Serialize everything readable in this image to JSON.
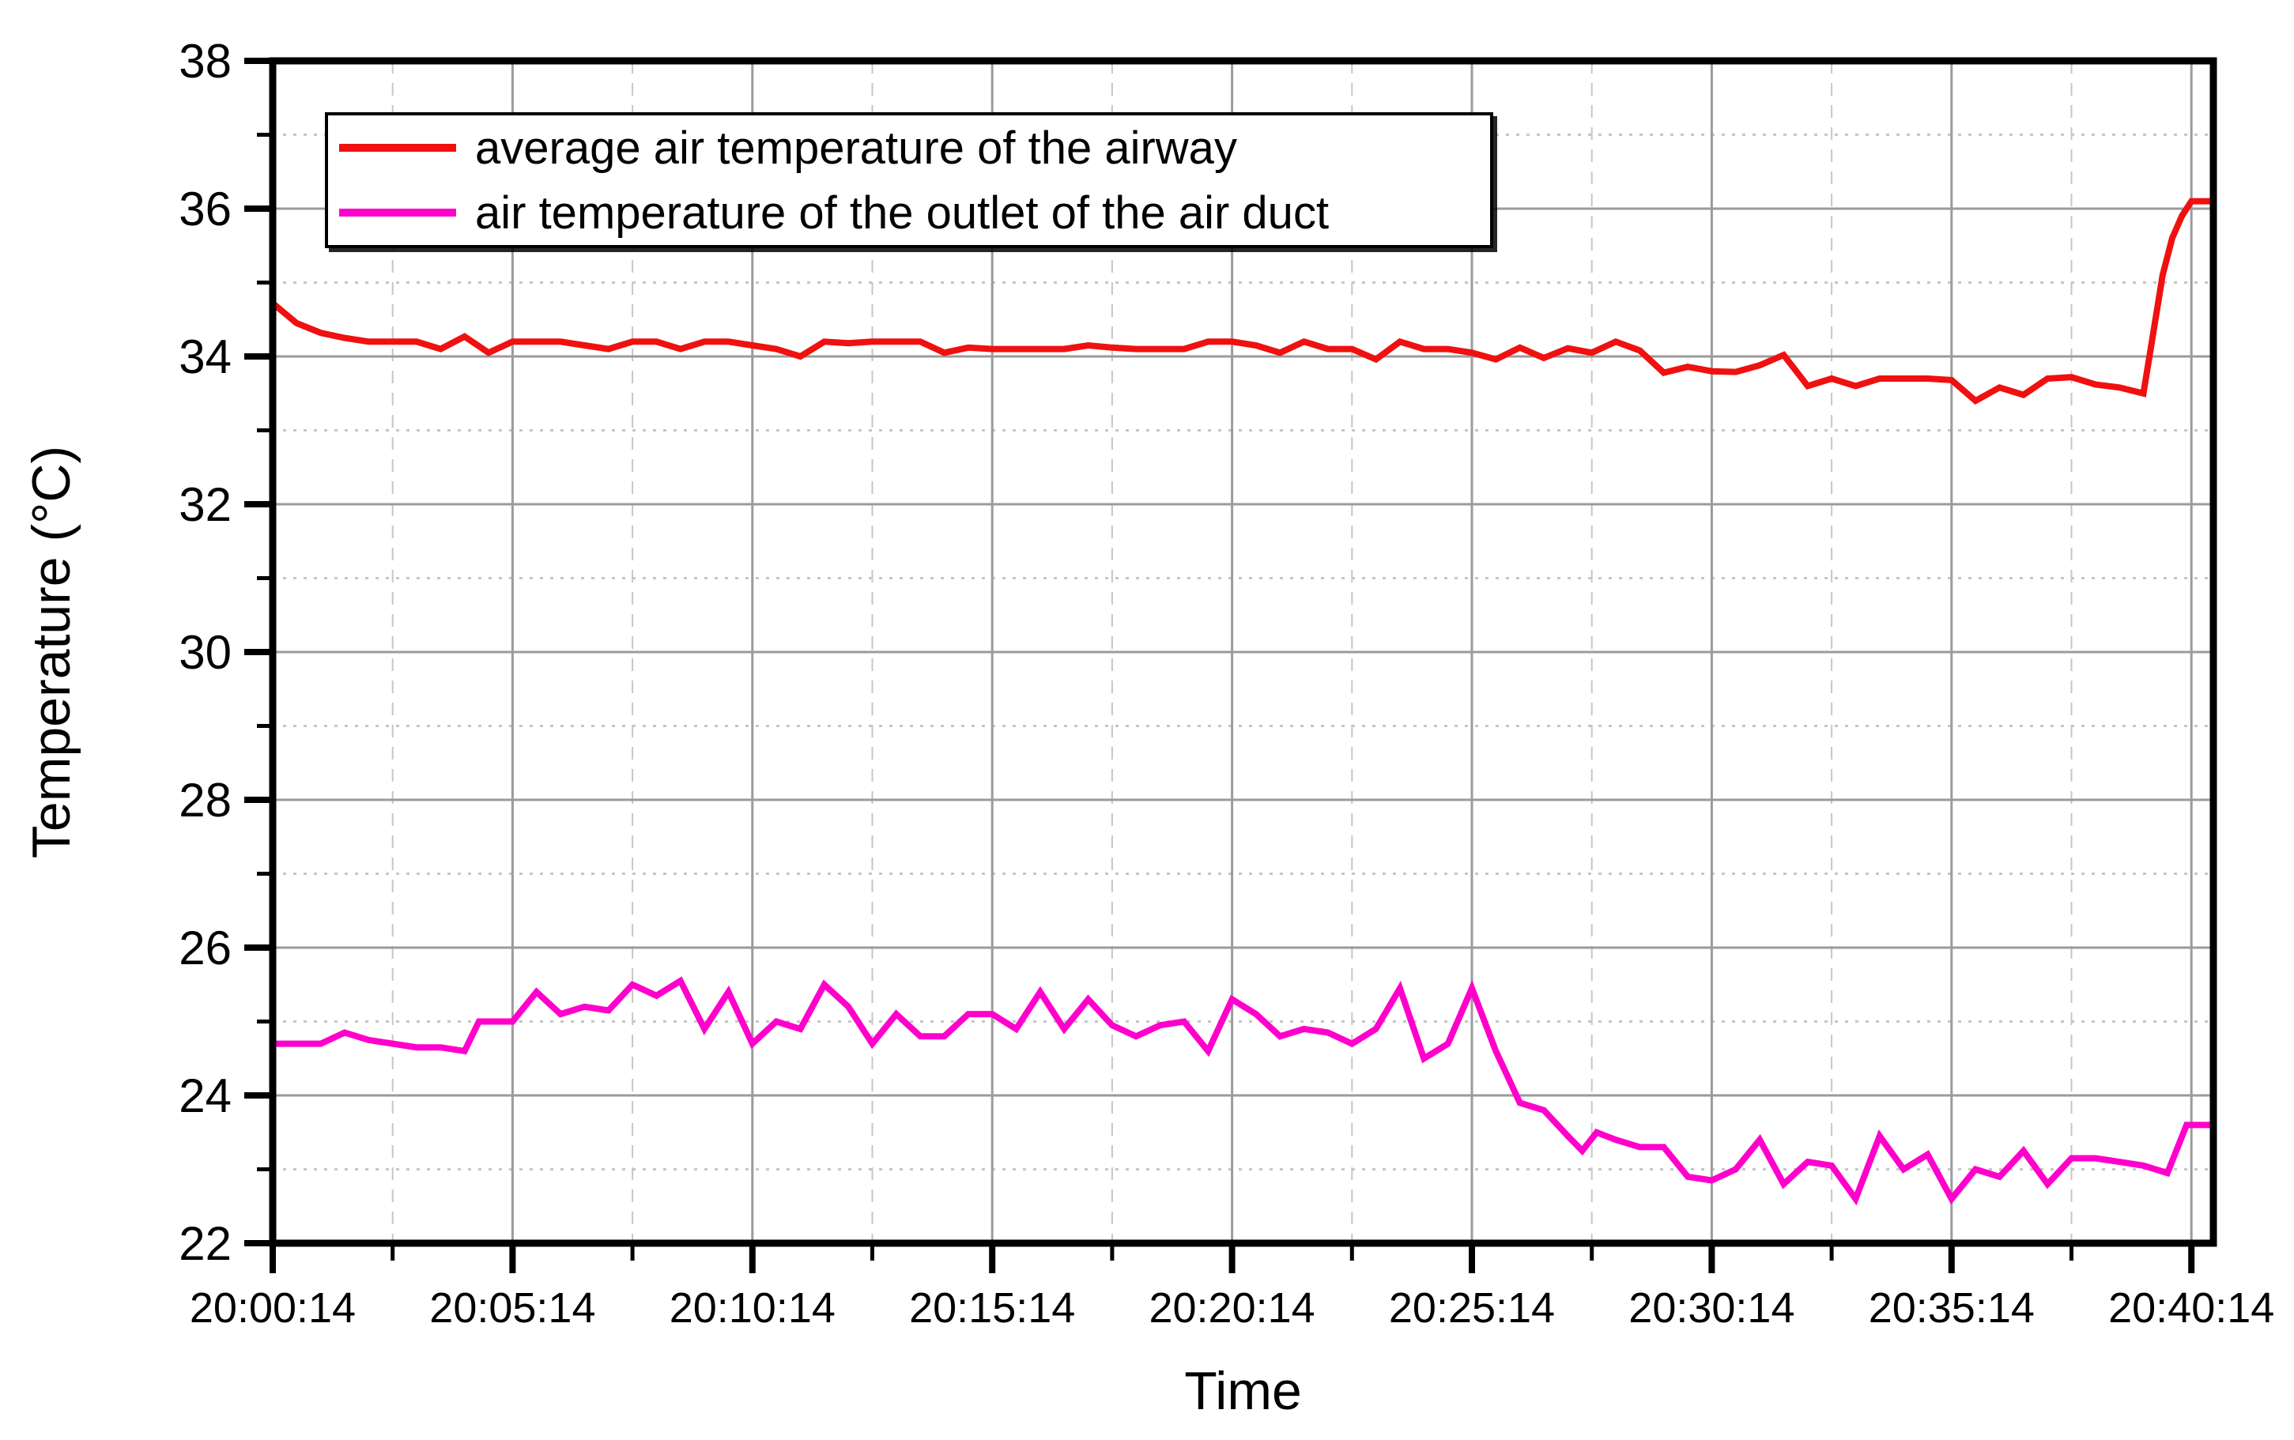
{
  "page": {
    "background_color": "#ffffff"
  },
  "chart_data": {
    "type": "line",
    "title": "",
    "xlabel": "Time",
    "ylabel": "Temperature (°C)",
    "grid": true,
    "legend_position": "top-left",
    "axes": {
      "x_unit": "minutes since 20:00:14",
      "xlim_minutes": [
        0,
        40.45
      ],
      "ylim": [
        22,
        38
      ],
      "x_major_ticks_minutes": [
        0,
        5,
        10,
        15,
        20,
        25,
        30,
        35,
        40
      ],
      "x_major_tick_labels": [
        "20:00:14",
        "20:05:14",
        "20:10:14",
        "20:15:14",
        "20:20:14",
        "20:25:14",
        "20:30:14",
        "20:35:14",
        "20:40:14"
      ],
      "x_minor_ticks_minutes": [
        2.5,
        7.5,
        12.5,
        17.5,
        22.5,
        27.5,
        32.5,
        37.5
      ],
      "y_major_ticks": [
        22,
        24,
        26,
        28,
        30,
        32,
        34,
        36,
        38
      ],
      "y_minor_ticks": [
        23,
        25,
        27,
        29,
        31,
        33,
        35,
        37
      ]
    },
    "colors": {
      "axis": "#000000",
      "major_grid": "#9b9b9b",
      "minor_grid": "#c6c6c6",
      "series_airway": "#F01010",
      "series_outlet": "#FF00CC"
    },
    "series": [
      {
        "name": "average air temperature of the airway",
        "color": "#F01010",
        "points_t_min_vs_degC": [
          [
            0,
            34.72
          ],
          [
            0.5,
            34.45
          ],
          [
            1,
            34.32
          ],
          [
            1.5,
            34.25
          ],
          [
            2,
            34.2
          ],
          [
            2.5,
            34.2
          ],
          [
            3,
            34.2
          ],
          [
            3.5,
            34.1
          ],
          [
            4,
            34.27
          ],
          [
            4.5,
            34.05
          ],
          [
            5,
            34.2
          ],
          [
            5.5,
            34.2
          ],
          [
            6,
            34.2
          ],
          [
            6.5,
            34.15
          ],
          [
            7,
            34.1
          ],
          [
            7.5,
            34.2
          ],
          [
            8,
            34.2
          ],
          [
            8.5,
            34.1
          ],
          [
            9,
            34.2
          ],
          [
            9.5,
            34.2
          ],
          [
            10,
            34.15
          ],
          [
            10.5,
            34.1
          ],
          [
            11,
            34.0
          ],
          [
            11.5,
            34.2
          ],
          [
            12,
            34.18
          ],
          [
            12.5,
            34.2
          ],
          [
            13,
            34.2
          ],
          [
            13.5,
            34.2
          ],
          [
            14,
            34.05
          ],
          [
            14.5,
            34.12
          ],
          [
            15,
            34.1
          ],
          [
            15.5,
            34.1
          ],
          [
            16,
            34.1
          ],
          [
            16.5,
            34.1
          ],
          [
            17,
            34.15
          ],
          [
            17.5,
            34.12
          ],
          [
            18,
            34.1
          ],
          [
            18.5,
            34.1
          ],
          [
            19,
            34.1
          ],
          [
            19.5,
            34.2
          ],
          [
            20,
            34.2
          ],
          [
            20.5,
            34.15
          ],
          [
            21,
            34.05
          ],
          [
            21.5,
            34.2
          ],
          [
            22,
            34.1
          ],
          [
            22.5,
            34.1
          ],
          [
            23,
            33.96
          ],
          [
            23.5,
            34.2
          ],
          [
            24,
            34.1
          ],
          [
            24.5,
            34.1
          ],
          [
            25,
            34.05
          ],
          [
            25.5,
            33.96
          ],
          [
            26,
            34.12
          ],
          [
            26.5,
            33.98
          ],
          [
            27,
            34.11
          ],
          [
            27.5,
            34.05
          ],
          [
            28,
            34.2
          ],
          [
            28.5,
            34.08
          ],
          [
            29,
            33.78
          ],
          [
            29.5,
            33.86
          ],
          [
            30,
            33.8
          ],
          [
            30.5,
            33.79
          ],
          [
            31,
            33.88
          ],
          [
            31.5,
            34.02
          ],
          [
            32,
            33.6
          ],
          [
            32.5,
            33.7
          ],
          [
            33,
            33.6
          ],
          [
            33.5,
            33.7
          ],
          [
            34,
            33.7
          ],
          [
            34.5,
            33.7
          ],
          [
            35,
            33.68
          ],
          [
            35.5,
            33.4
          ],
          [
            36,
            33.58
          ],
          [
            36.5,
            33.48
          ],
          [
            37,
            33.7
          ],
          [
            37.5,
            33.72
          ],
          [
            38,
            33.62
          ],
          [
            38.5,
            33.58
          ],
          [
            39,
            33.5
          ],
          [
            39.2,
            34.3
          ],
          [
            39.4,
            35.1
          ],
          [
            39.6,
            35.6
          ],
          [
            39.8,
            35.9
          ],
          [
            40,
            36.1
          ],
          [
            40.45,
            36.1
          ]
        ]
      },
      {
        "name": "air temperature of the outlet of the air duct",
        "color": "#FF00CC",
        "points_t_min_vs_degC": [
          [
            0,
            24.7
          ],
          [
            0.5,
            24.7
          ],
          [
            1,
            24.7
          ],
          [
            1.5,
            24.85
          ],
          [
            2,
            24.75
          ],
          [
            2.5,
            24.7
          ],
          [
            3,
            24.65
          ],
          [
            3.5,
            24.65
          ],
          [
            4,
            24.6
          ],
          [
            4.3,
            25.0
          ],
          [
            5,
            25.0
          ],
          [
            5.5,
            25.4
          ],
          [
            6,
            25.1
          ],
          [
            6.5,
            25.2
          ],
          [
            7,
            25.15
          ],
          [
            7.5,
            25.5
          ],
          [
            8,
            25.35
          ],
          [
            8.5,
            25.55
          ],
          [
            9,
            24.9
          ],
          [
            9.5,
            25.4
          ],
          [
            10,
            24.7
          ],
          [
            10.5,
            25.0
          ],
          [
            11,
            24.9
          ],
          [
            11.5,
            25.5
          ],
          [
            12,
            25.2
          ],
          [
            12.5,
            24.7
          ],
          [
            13,
            25.1
          ],
          [
            13.5,
            24.8
          ],
          [
            14,
            24.8
          ],
          [
            14.5,
            25.1
          ],
          [
            15,
            25.1
          ],
          [
            15.5,
            24.9
          ],
          [
            16,
            25.4
          ],
          [
            16.5,
            24.9
          ],
          [
            17,
            25.3
          ],
          [
            17.5,
            24.95
          ],
          [
            18,
            24.8
          ],
          [
            18.5,
            24.95
          ],
          [
            19,
            25.0
          ],
          [
            19.5,
            24.6
          ],
          [
            20,
            25.3
          ],
          [
            20.5,
            25.1
          ],
          [
            21,
            24.8
          ],
          [
            21.5,
            24.9
          ],
          [
            22,
            24.85
          ],
          [
            22.5,
            24.7
          ],
          [
            23,
            24.9
          ],
          [
            23.5,
            25.45
          ],
          [
            24,
            24.5
          ],
          [
            24.5,
            24.7
          ],
          [
            25,
            25.45
          ],
          [
            25.5,
            24.6
          ],
          [
            26,
            23.9
          ],
          [
            26.5,
            23.8
          ],
          [
            27,
            23.45
          ],
          [
            27.3,
            23.25
          ],
          [
            27.6,
            23.5
          ],
          [
            28,
            23.4
          ],
          [
            28.5,
            23.3
          ],
          [
            29,
            23.3
          ],
          [
            29.5,
            22.9
          ],
          [
            30,
            22.85
          ],
          [
            30.5,
            23.0
          ],
          [
            31,
            23.4
          ],
          [
            31.5,
            22.8
          ],
          [
            32,
            23.1
          ],
          [
            32.5,
            23.05
          ],
          [
            33,
            22.6
          ],
          [
            33.5,
            23.45
          ],
          [
            34,
            23.0
          ],
          [
            34.5,
            23.2
          ],
          [
            35,
            22.6
          ],
          [
            35.5,
            23.0
          ],
          [
            36,
            22.9
          ],
          [
            36.5,
            23.25
          ],
          [
            37,
            22.8
          ],
          [
            37.5,
            23.15
          ],
          [
            38,
            23.15
          ],
          [
            38.5,
            23.1
          ],
          [
            39,
            23.05
          ],
          [
            39.5,
            22.95
          ],
          [
            39.9,
            23.6
          ],
          [
            40.45,
            23.6
          ]
        ]
      }
    ]
  },
  "legend": {
    "items": [
      {
        "label": "average air temperature of the airway",
        "color": "#F01010"
      },
      {
        "label": "air temperature of the outlet of the air duct",
        "color": "#FF00CC"
      }
    ]
  }
}
